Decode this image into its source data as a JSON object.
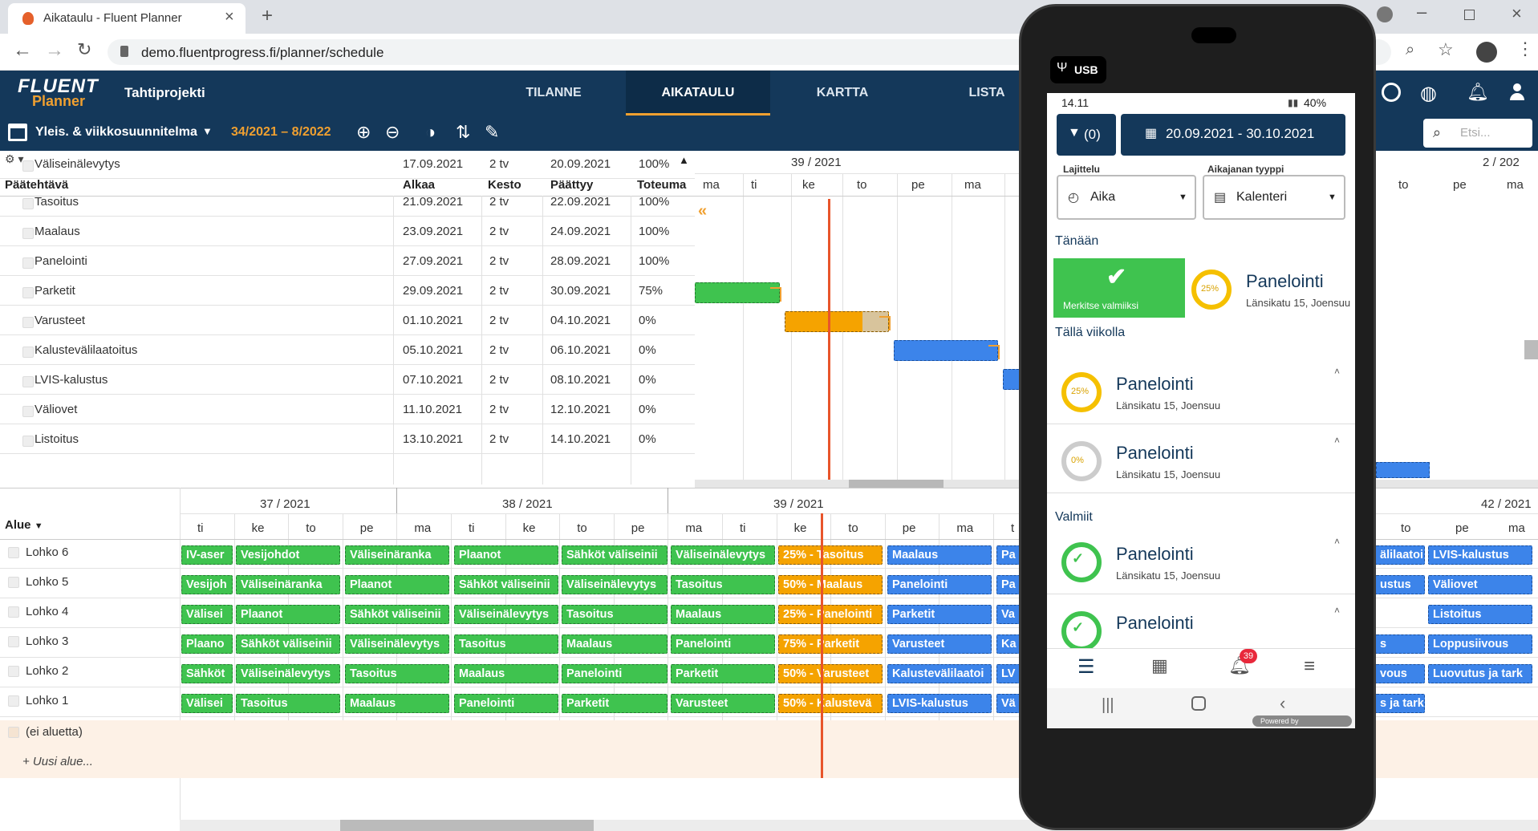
{
  "browser": {
    "tab_title": "Aikataulu - Fluent Planner",
    "url": "demo.fluentprogress.fi/planner/schedule"
  },
  "app": {
    "logo_top": "FLUENT",
    "logo_bottom": "Planner",
    "project": "Tahtiprojekti",
    "nav": [
      "TILANNE",
      "AIKATAULU",
      "KARTTA",
      "LISTA"
    ],
    "plan_name": "Yleis. & viikkosuunnitelma",
    "range": "34/2021 – 8/2022",
    "search_placeholder": "Etsi..."
  },
  "task_table": {
    "headers": [
      "Päätehtävä",
      "Alkaa",
      "Kesto",
      "Päättyy",
      "Toteuma"
    ],
    "rows": [
      [
        "Väliseinälevytys",
        "17.09.2021",
        "2 tv",
        "20.09.2021",
        "100%"
      ],
      [
        "Tasoitus",
        "21.09.2021",
        "2 tv",
        "22.09.2021",
        "100%"
      ],
      [
        "Maalaus",
        "23.09.2021",
        "2 tv",
        "24.09.2021",
        "100%"
      ],
      [
        "Panelointi",
        "27.09.2021",
        "2 tv",
        "28.09.2021",
        "100%"
      ],
      [
        "Parketit",
        "29.09.2021",
        "2 tv",
        "30.09.2021",
        "75%"
      ],
      [
        "Varusteet",
        "01.10.2021",
        "2 tv",
        "04.10.2021",
        "0%"
      ],
      [
        "Kalustevälilaatoitus",
        "05.10.2021",
        "2 tv",
        "06.10.2021",
        "0%"
      ],
      [
        "LVIS-kalustus",
        "07.10.2021",
        "2 tv",
        "08.10.2021",
        "0%"
      ],
      [
        "Väliovet",
        "11.10.2021",
        "2 tv",
        "12.10.2021",
        "0%"
      ],
      [
        "Listoitus",
        "13.10.2021",
        "2 tv",
        "14.10.2021",
        "0%"
      ]
    ]
  },
  "top_gantt": {
    "week": "39 / 2021",
    "week_right": "2 / 202",
    "days": [
      "ma",
      "ti",
      "ke",
      "to",
      "pe",
      "ma",
      "to",
      "pe",
      "ma"
    ]
  },
  "bottom_gantt": {
    "alue_label": "Alue",
    "weeks": [
      "37 / 2021",
      "38 / 2021",
      "39 / 2021",
      "42 / 2021"
    ],
    "days": [
      "ti",
      "ke",
      "to",
      "pe",
      "ma",
      "ti",
      "ke",
      "to",
      "pe",
      "ma",
      "ti",
      "ke",
      "to",
      "pe",
      "ma",
      "t",
      "to",
      "pe",
      "ma"
    ],
    "areas": [
      "Lohko 6",
      "Lohko 5",
      "Lohko 4",
      "Lohko 3",
      "Lohko 2",
      "Lohko 1",
      "(ei aluetta)"
    ],
    "new_area": "+ Uusi alue...",
    "lanes": [
      [
        "IV-aser",
        "Vesijohdot",
        "Väliseinäranka",
        "Plaanot",
        "Sähköt väliseinii",
        "Väliseinälevytys",
        "25% - Tasoitus",
        "Maalaus",
        "Pa",
        "älilaatoi",
        "LVIS-kalustus"
      ],
      [
        "Vesijoh",
        "Väliseinäranka",
        "Plaanot",
        "Sähköt väliseinii",
        "Väliseinälevytys",
        "Tasoitus",
        "50% - Maalaus",
        "Panelointi",
        "Pa",
        "ustus",
        "Väliovet"
      ],
      [
        "Välisei",
        "Plaanot",
        "Sähköt väliseinii",
        "Väliseinälevytys",
        "Tasoitus",
        "Maalaus",
        "25% - Panelointi",
        "Parketit",
        "Va",
        "",
        "Listoitus"
      ],
      [
        "Plaano",
        "Sähköt väliseinii",
        "Väliseinälevytys",
        "Tasoitus",
        "Maalaus",
        "Panelointi",
        "75% - Parketit",
        "Varusteet",
        "Ka",
        "s",
        "Loppusiivous"
      ],
      [
        "Sähköt",
        "Väliseinälevytys",
        "Tasoitus",
        "Maalaus",
        "Panelointi",
        "Parketit",
        "50% - Varusteet",
        "Kalustevälilaatoi",
        "LV",
        "vous",
        "Luovutus ja tark"
      ],
      [
        "Välisei",
        "Tasoitus",
        "Maalaus",
        "Panelointi",
        "Parketit",
        "Varusteet",
        "50% - Kalustevä",
        "LVIS-kalustus",
        "Vä",
        "s ja tark",
        ""
      ]
    ]
  },
  "phone": {
    "usb": "USB",
    "time": "14.11",
    "battery": "40%",
    "filter": "(0)",
    "date_range": "20.09.2021 - 30.10.2021",
    "sort_label": "Lajittelu",
    "sort_value": "Aika",
    "timeline_label": "Aikajanan tyyppi",
    "timeline_value": "Kalenteri",
    "today": "Tänään",
    "mark_done": "Merkitse valmiiksi",
    "this_week": "Tällä viikolla",
    "done": "Valmiit",
    "badge": "39",
    "powered": "Powered by",
    "cards": [
      {
        "title": "Panelointi",
        "addr": "Länsikatu 15, Joensuu",
        "pct": "25%"
      },
      {
        "title": "Panelointi",
        "addr": "Länsikatu 15, Joensuu",
        "pct": "25%"
      },
      {
        "title": "Panelointi",
        "addr": "Länsikatu 15, Joensuu",
        "pct": "0%"
      },
      {
        "title": "Panelointi",
        "addr": "Länsikatu 15, Joensuu",
        "pct": ""
      },
      {
        "title": "Panelointi",
        "addr": "",
        "pct": ""
      }
    ]
  }
}
